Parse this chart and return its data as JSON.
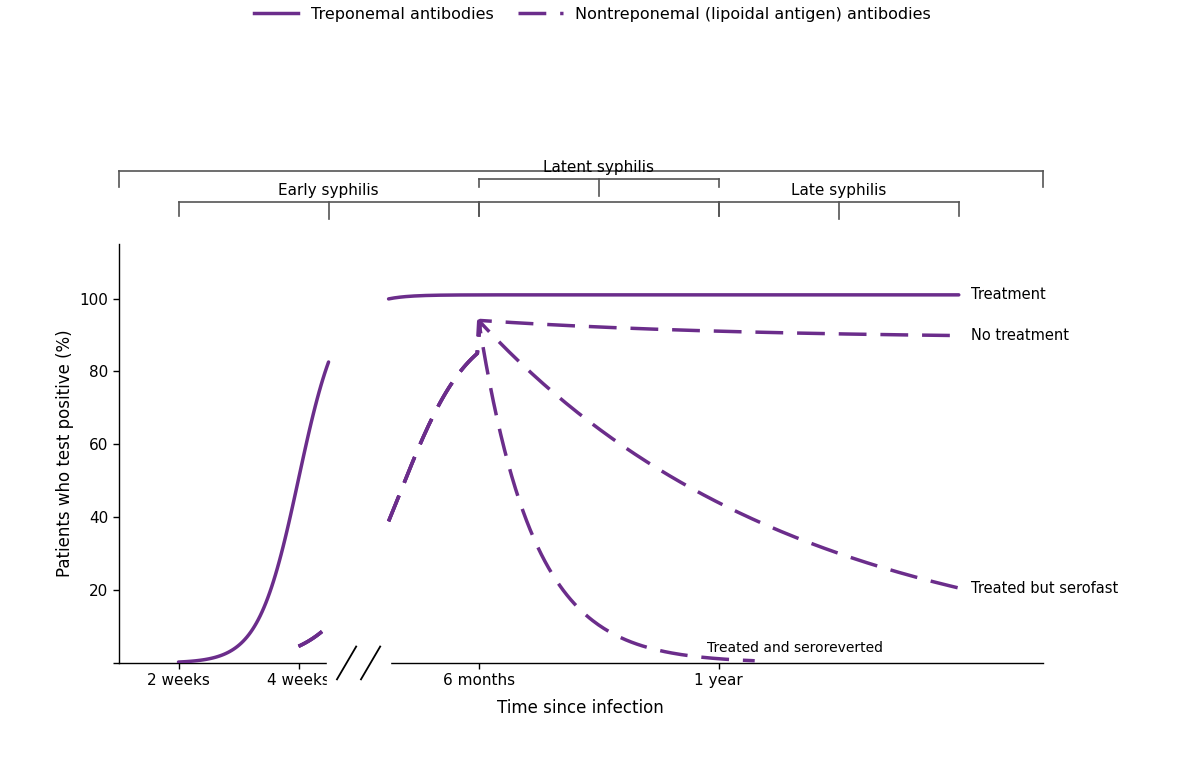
{
  "title": "",
  "xlabel": "Time since infection",
  "ylabel": "Patients who test positive (%)",
  "color": "#6B2D8B",
  "background_color": "#ffffff",
  "ylim": [
    0,
    115
  ],
  "yticks": [
    0,
    20,
    40,
    60,
    80,
    100
  ],
  "legend_treponemal": "Treponemal antibodies",
  "legend_nontreponemal": "Nontreponemal (lipoidal antigen) antibodies",
  "annotation_treatment": "Treatment",
  "annotation_notreatment": "No treatment",
  "annotation_seroreverted": "Treated and seroreverted",
  "annotation_serofast": "Treated but serofast",
  "stage_early": "Early syphilis",
  "stage_latent": "Latent syphilis",
  "stage_late": "Late syphilis",
  "bracket_color": "#555555"
}
